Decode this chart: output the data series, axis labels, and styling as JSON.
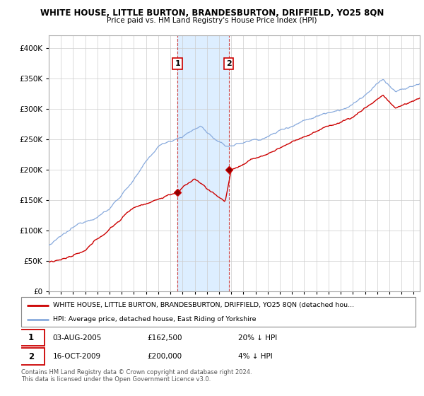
{
  "title1": "WHITE HOUSE, LITTLE BURTON, BRANDESBURTON, DRIFFIELD, YO25 8QN",
  "title2": "Price paid vs. HM Land Registry's House Price Index (HPI)",
  "legend_line1": "WHITE HOUSE, LITTLE BURTON, BRANDESBURTON, DRIFFIELD, YO25 8QN (detached hou...",
  "legend_line2": "HPI: Average price, detached house, East Riding of Yorkshire",
  "annotation1_date": "03-AUG-2005",
  "annotation1_price": "£162,500",
  "annotation1_hpi": "20% ↓ HPI",
  "annotation2_date": "16-OCT-2009",
  "annotation2_price": "£200,000",
  "annotation2_hpi": "4% ↓ HPI",
  "footnote": "Contains HM Land Registry data © Crown copyright and database right 2024.\nThis data is licensed under the Open Government Licence v3.0.",
  "red_color": "#cc0000",
  "blue_color": "#88aadd",
  "highlight_color": "#ddeeff",
  "annotation_box_color": "#cc0000",
  "ylim": [
    0,
    420000
  ],
  "yticks": [
    0,
    50000,
    100000,
    150000,
    200000,
    250000,
    300000,
    350000,
    400000
  ],
  "sale1_year": 2005.58,
  "sale1_price": 162500,
  "sale2_year": 2009.79,
  "sale2_price": 200000,
  "xstart": 1995,
  "xend": 2025.5
}
